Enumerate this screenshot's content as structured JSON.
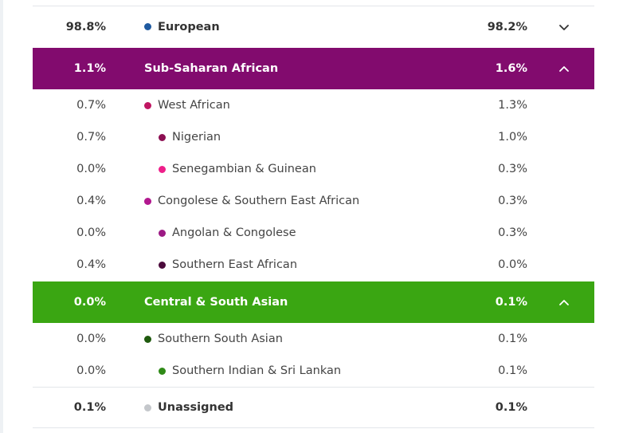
{
  "rows": [
    {
      "kind": "top",
      "left_pct": "98.8%",
      "name": "European",
      "right_pct": "98.2%",
      "dot": "#1f5aa0",
      "chevron": "chevron-down"
    },
    {
      "kind": "header",
      "left_pct": "1.1%",
      "name": "Sub-Saharan African",
      "right_pct": "1.6%",
      "bg": "#820b6e",
      "chevron": "chevron-up"
    },
    {
      "kind": "sub",
      "left_pct": "0.7%",
      "name": "West African",
      "right_pct": "1.3%",
      "dot": "#c01662",
      "indent": 0
    },
    {
      "kind": "sub",
      "left_pct": "0.7%",
      "name": "Nigerian",
      "right_pct": "1.0%",
      "dot": "#8c0f52",
      "indent": 1
    },
    {
      "kind": "sub",
      "left_pct": "0.0%",
      "name": "Senegambian & Guinean",
      "right_pct": "0.3%",
      "dot": "#ee1f8a",
      "indent": 1
    },
    {
      "kind": "sub",
      "left_pct": "0.4%",
      "name": "Congolese & Southern East African",
      "right_pct": "0.3%",
      "dot": "#b2188f",
      "indent": 0
    },
    {
      "kind": "sub",
      "left_pct": "0.0%",
      "name": "Angolan & Congolese",
      "right_pct": "0.3%",
      "dot": "#9c1a84",
      "indent": 1
    },
    {
      "kind": "sub",
      "left_pct": "0.4%",
      "name": "Southern East African",
      "right_pct": "0.0%",
      "dot": "#4b0a3b",
      "indent": 1
    },
    {
      "kind": "header",
      "left_pct": "0.0%",
      "name": "Central & South Asian",
      "right_pct": "0.1%",
      "bg": "#3aa612",
      "chevron": "chevron-up"
    },
    {
      "kind": "sub",
      "left_pct": "0.0%",
      "name": "Southern South Asian",
      "right_pct": "0.1%",
      "dot": "#1f5a0e",
      "indent": 0
    },
    {
      "kind": "sub",
      "left_pct": "0.0%",
      "name": "Southern Indian & Sri Lankan",
      "right_pct": "0.1%",
      "dot": "#2f8a17",
      "indent": 1
    },
    {
      "kind": "top",
      "left_pct": "0.1%",
      "name": "Unassigned",
      "right_pct": "0.1%",
      "dot": "#c4c7cb"
    }
  ]
}
